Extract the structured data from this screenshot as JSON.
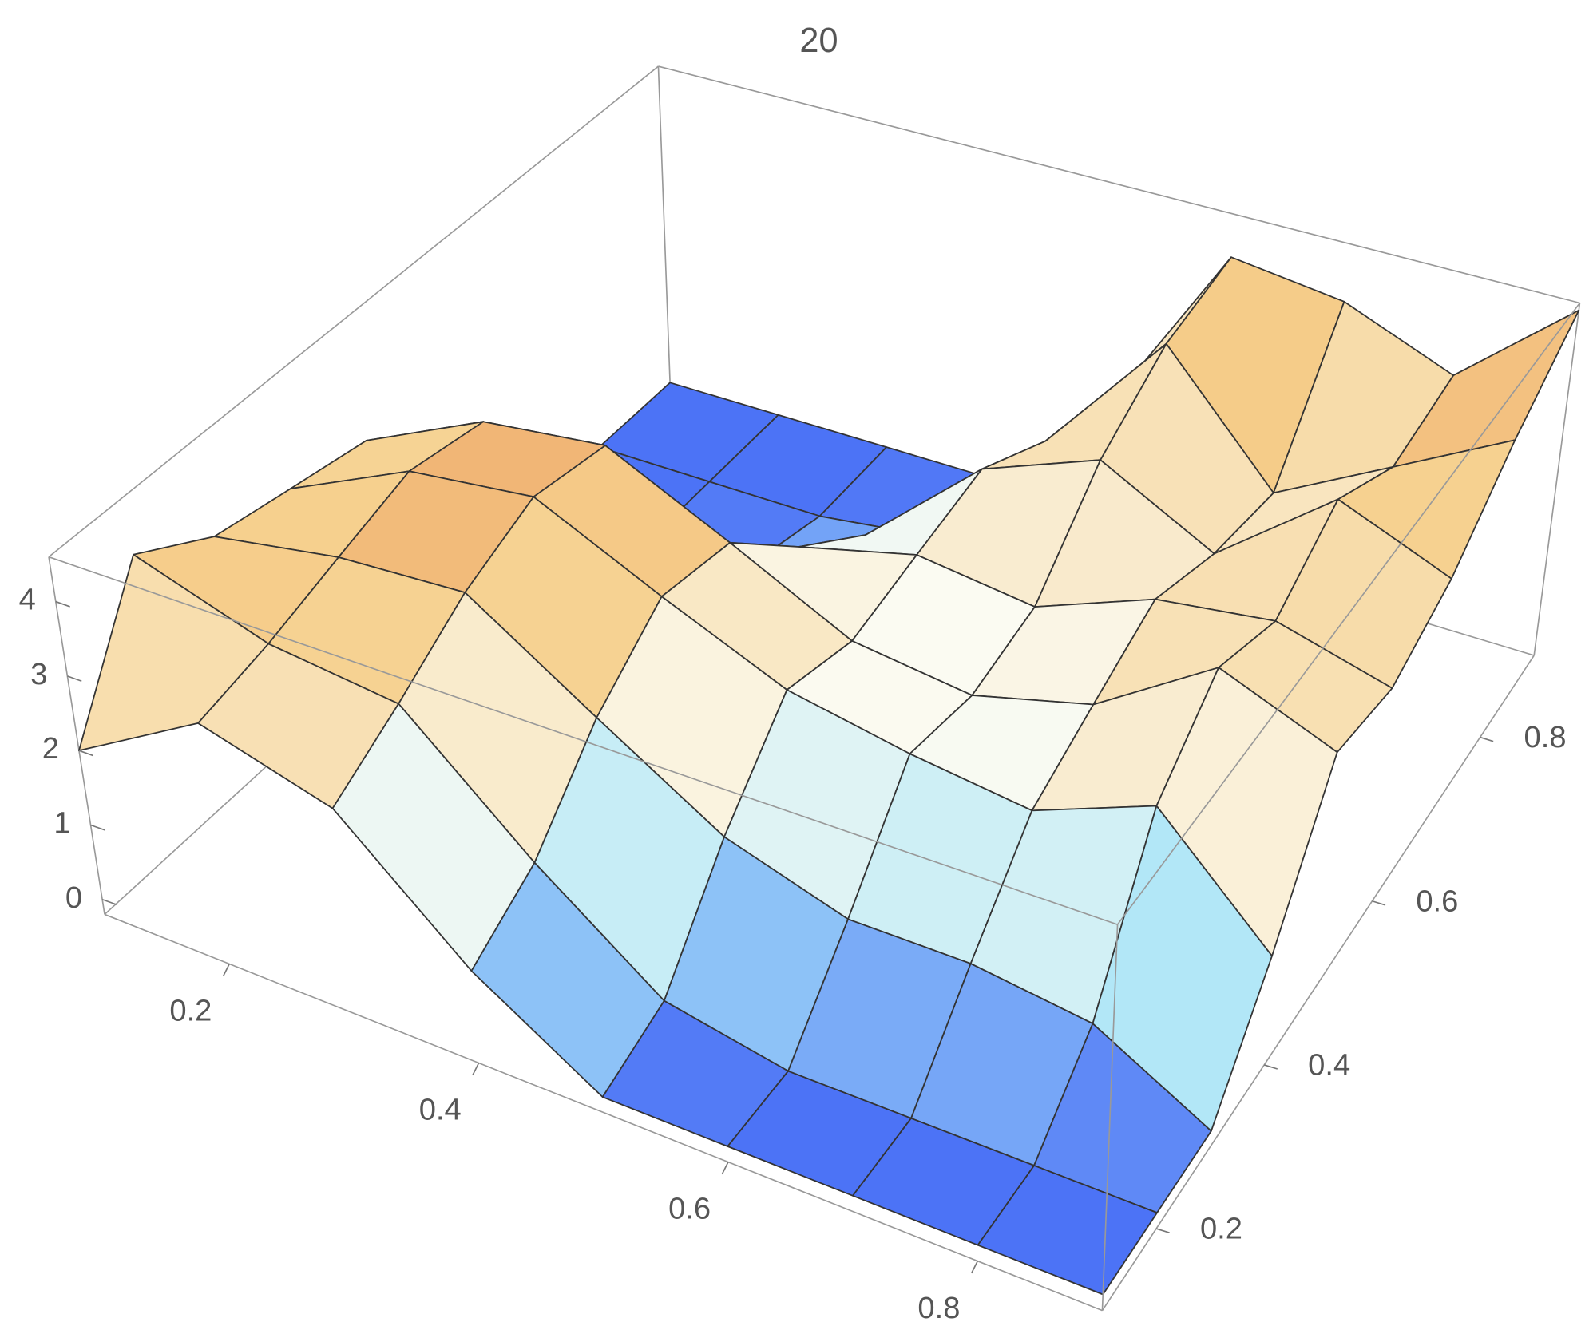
{
  "chart_data": {
    "type": "surface",
    "title": "20",
    "x": [
      0.1,
      0.2,
      0.3,
      0.4,
      0.5,
      0.6,
      0.7,
      0.8,
      0.9
    ],
    "y": [
      0.1,
      0.2,
      0.3,
      0.4,
      0.5,
      0.6,
      0.7,
      0.8,
      0.9
    ],
    "z": [
      [
        2.0,
        3.0,
        2.5,
        1.0,
        0,
        0,
        0,
        0,
        0
      ],
      [
        3.8,
        3.2,
        3.0,
        1.5,
        0.3,
        0,
        0,
        0,
        0
      ],
      [
        3.2,
        3.5,
        3.6,
        2.5,
        1.5,
        1.0,
        1.0,
        0.8,
        0
      ],
      [
        3.0,
        3.8,
        4.0,
        3.2,
        2.5,
        2.2,
        2.0,
        2.6,
        1.2
      ],
      [
        2.8,
        3.6,
        3.8,
        3.0,
        2.2,
        2.0,
        2.4,
        3.4,
        2.8
      ],
      [
        0,
        0.5,
        1.2,
        2.0,
        2.4,
        2.2,
        2.8,
        3.0,
        2.6
      ],
      [
        0,
        0,
        0.3,
        1.2,
        2.6,
        3.2,
        2.4,
        3.6,
        3.0
      ],
      [
        0,
        0,
        0,
        0.2,
        2.0,
        3.8,
        2.2,
        3.0,
        3.8
      ],
      [
        0,
        0,
        0,
        0,
        1.5,
        4.0,
        3.8,
        3.2,
        4.5
      ]
    ],
    "xlim": [
      0.1,
      0.9
    ],
    "ylim": [
      0.1,
      0.9
    ],
    "zlim": [
      -0.2,
      4.6
    ],
    "xticks": [
      0.2,
      0.4,
      0.6,
      0.8
    ],
    "yticks": [
      0.2,
      0.4,
      0.6,
      0.8
    ],
    "zticks": [
      0,
      1,
      2,
      3,
      4
    ],
    "colorscale": [
      "#3a5cf5",
      "#a8e4f8",
      "#fbfbf2",
      "#f6cf8c",
      "#e8844a"
    ],
    "mesh": true
  }
}
